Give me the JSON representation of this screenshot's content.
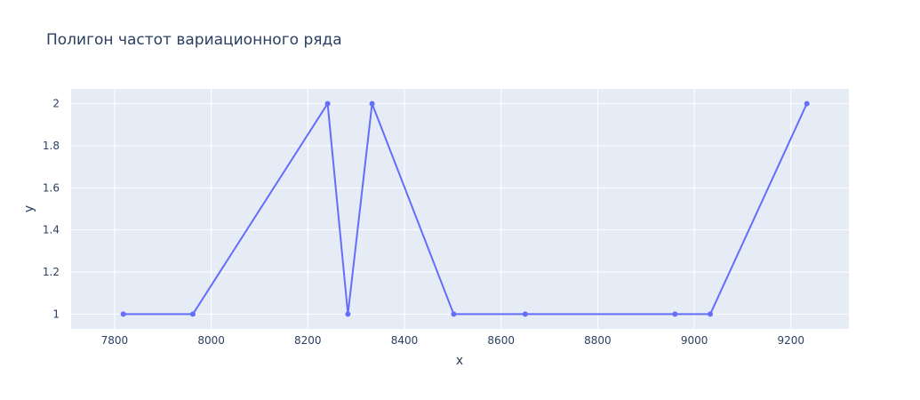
{
  "chart_data": {
    "type": "line",
    "title": "Полигон частот вариационного ряда",
    "xlabel": "x",
    "ylabel": "y",
    "xlim": [
      7710,
      9320
    ],
    "ylim": [
      0.93,
      2.07
    ],
    "x_ticks": [
      7800,
      8000,
      8200,
      8400,
      8600,
      8800,
      9000,
      9200
    ],
    "y_ticks": [
      1,
      1.2,
      1.4,
      1.6,
      1.8,
      2
    ],
    "y_tick_labels": [
      "1",
      "1.2",
      "1.4",
      "1.6",
      "1.8",
      "2"
    ],
    "grid": true,
    "series": [
      {
        "color": "#636efa",
        "x": [
          7818,
          7962,
          8241,
          8283,
          8333,
          8502,
          8650,
          8960,
          9033,
          9233
        ],
        "y": [
          1,
          1,
          2,
          1,
          2,
          1,
          1,
          1,
          1,
          2
        ]
      }
    ]
  }
}
